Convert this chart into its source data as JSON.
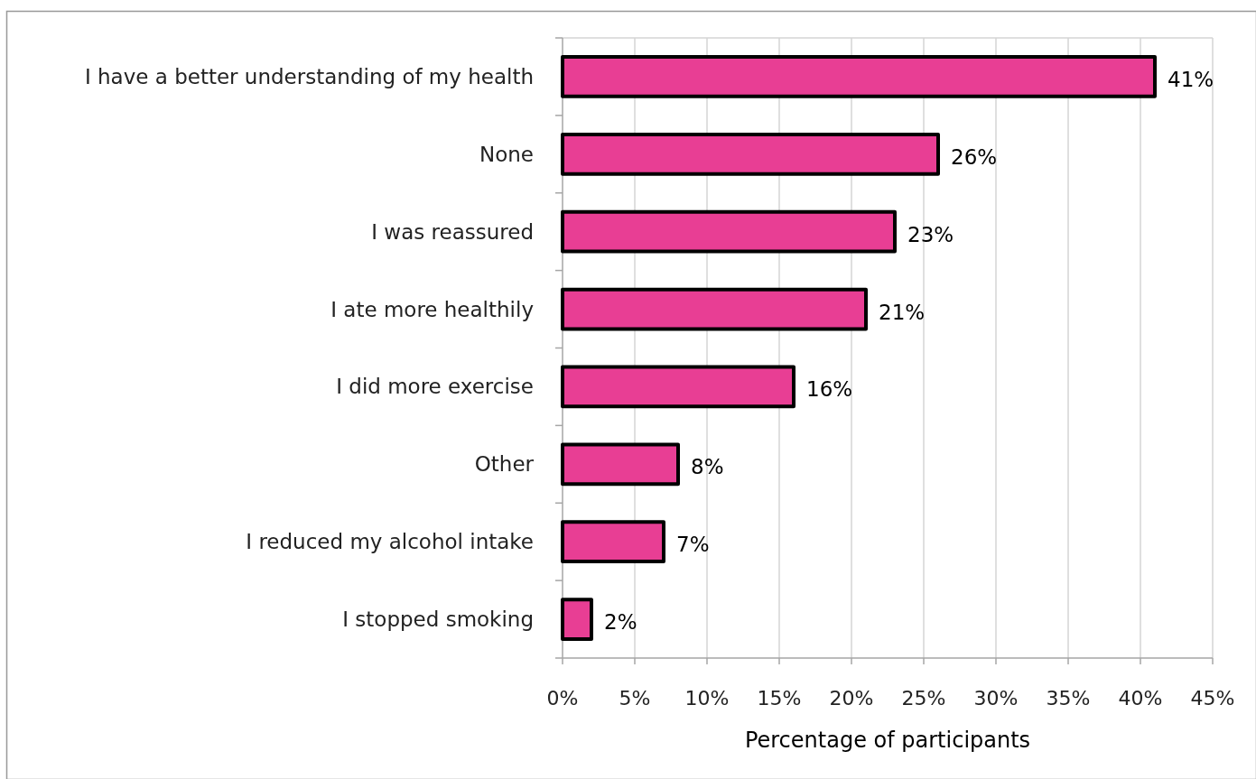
{
  "chart_data": {
    "type": "bar",
    "orientation": "horizontal",
    "xlabel": "Percentage of participants",
    "categories": [
      "I have a better understanding of my health",
      "None",
      "I was reassured",
      "I ate more healthily",
      "I did more exercise",
      "Other",
      "I reduced my alcohol intake",
      "I stopped smoking"
    ],
    "values": [
      41,
      26,
      23,
      21,
      16,
      8,
      7,
      2
    ],
    "value_labels": [
      "41%",
      "26%",
      "23%",
      "21%",
      "16%",
      "8%",
      "7%",
      "2%"
    ],
    "color": "#e83e94",
    "xlim": [
      0,
      45
    ],
    "xticks": [
      {
        "value": 0,
        "label": "0%"
      },
      {
        "value": 5,
        "label": "5%"
      },
      {
        "value": 10,
        "label": "10%"
      },
      {
        "value": 15,
        "label": "15%"
      },
      {
        "value": 20,
        "label": "20%"
      },
      {
        "value": 25,
        "label": "25%"
      },
      {
        "value": 30,
        "label": "30%"
      },
      {
        "value": 35,
        "label": "35%"
      },
      {
        "value": 40,
        "label": "40%"
      },
      {
        "value": 45,
        "label": "45%"
      }
    ],
    "grid": "x"
  }
}
